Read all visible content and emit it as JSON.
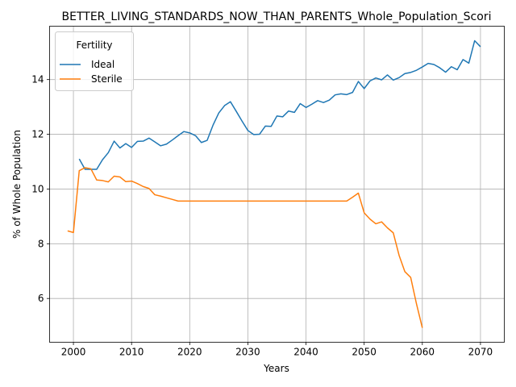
{
  "chart_data": {
    "type": "line",
    "title": "BETTER_LIVING_STANDARDS_NOW_THAN_PARENTS_Whole_Population_Scori",
    "xlabel": "Years",
    "ylabel": "% of Whole Population",
    "xlim": [
      1995.9,
      2074.1
    ],
    "ylim": [
      4.4,
      15.95
    ],
    "xticks": [
      2000,
      2010,
      2020,
      2030,
      2040,
      2050,
      2060,
      2070
    ],
    "yticks": [
      6,
      8,
      10,
      12,
      14
    ],
    "grid": true,
    "legend": {
      "title": "Fertility",
      "placement": "top-left"
    },
    "series": [
      {
        "name": "Ideal",
        "color": "#1f77b4",
        "x": [
          2001,
          2002,
          2003,
          2004,
          2005,
          2006,
          2007,
          2008,
          2009,
          2010,
          2011,
          2012,
          2013,
          2014,
          2015,
          2016,
          2017,
          2018,
          2019,
          2020,
          2021,
          2022,
          2023,
          2024,
          2025,
          2026,
          2027,
          2028,
          2029,
          2030,
          2031,
          2032,
          2033,
          2034,
          2035,
          2036,
          2037,
          2038,
          2039,
          2040,
          2041,
          2042,
          2043,
          2044,
          2045,
          2046,
          2047,
          2048,
          2049,
          2050,
          2051,
          2052,
          2053,
          2054,
          2055,
          2056,
          2057,
          2058,
          2059,
          2060,
          2061,
          2062,
          2063,
          2064,
          2065,
          2066,
          2067,
          2068,
          2069,
          2070
        ],
        "values": [
          11.1,
          10.72,
          10.72,
          10.72,
          11.07,
          11.33,
          11.75,
          11.5,
          11.66,
          11.52,
          11.74,
          11.75,
          11.86,
          11.72,
          11.58,
          11.64,
          11.79,
          11.95,
          12.1,
          12.05,
          11.95,
          11.7,
          11.78,
          12.33,
          12.78,
          13.05,
          13.19,
          12.84,
          12.48,
          12.14,
          11.99,
          12.0,
          12.3,
          12.29,
          12.67,
          12.64,
          12.85,
          12.8,
          13.12,
          12.98,
          13.1,
          13.23,
          13.16,
          13.25,
          13.44,
          13.48,
          13.45,
          13.53,
          13.93,
          13.67,
          13.95,
          14.06,
          13.99,
          14.17,
          13.98,
          14.07,
          14.22,
          14.26,
          14.34,
          14.46,
          14.59,
          14.55,
          14.43,
          14.27,
          14.47,
          14.36,
          14.73,
          14.6,
          15.42,
          15.2
        ]
      },
      {
        "name": "Sterile",
        "color": "#ff7f0e",
        "x": [
          1999,
          2000,
          2001,
          2002,
          2003,
          2004,
          2005,
          2006,
          2007,
          2008,
          2009,
          2010,
          2011,
          2012,
          2013,
          2014,
          2015,
          2016,
          2017,
          2018,
          2019,
          2020,
          2021,
          2022,
          2023,
          2024,
          2025,
          2026,
          2027,
          2028,
          2029,
          2030,
          2031,
          2032,
          2033,
          2034,
          2035,
          2036,
          2037,
          2038,
          2039,
          2040,
          2041,
          2042,
          2043,
          2044,
          2045,
          2046,
          2047,
          2048,
          2049,
          2050,
          2051,
          2052,
          2053,
          2054,
          2055,
          2056,
          2057,
          2058,
          2059,
          2060
        ],
        "values": [
          8.47,
          8.41,
          10.67,
          10.78,
          10.74,
          10.33,
          10.31,
          10.26,
          10.47,
          10.44,
          10.27,
          10.29,
          10.2,
          10.09,
          10.02,
          9.79,
          9.74,
          9.68,
          9.62,
          9.56,
          9.56,
          9.56,
          9.56,
          9.56,
          9.56,
          9.56,
          9.56,
          9.56,
          9.56,
          9.56,
          9.56,
          9.56,
          9.56,
          9.56,
          9.56,
          9.56,
          9.56,
          9.56,
          9.56,
          9.56,
          9.56,
          9.56,
          9.56,
          9.56,
          9.56,
          9.56,
          9.56,
          9.56,
          9.56,
          9.7,
          9.85,
          9.13,
          8.9,
          8.73,
          8.8,
          8.58,
          8.4,
          7.58,
          6.98,
          6.77,
          5.8,
          4.93
        ]
      }
    ]
  }
}
